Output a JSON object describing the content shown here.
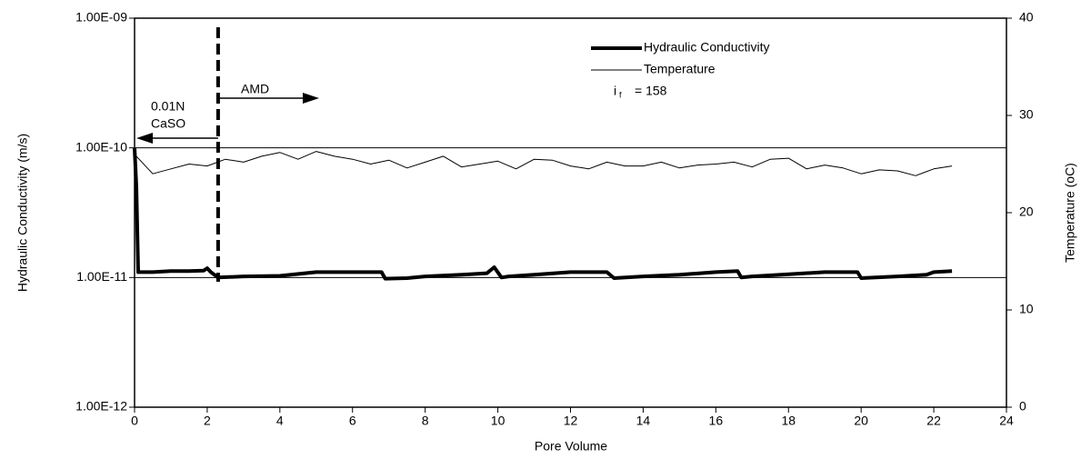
{
  "chart_data": {
    "type": "line",
    "x_label": "Pore Volume",
    "y_label": "Hydraulic Conductivity (m/s)",
    "y2_label": "Temperature (oC)",
    "xlim": [
      0,
      24
    ],
    "xticks": [
      0,
      2,
      4,
      6,
      8,
      10,
      12,
      14,
      16,
      18,
      20,
      22,
      24
    ],
    "ylim": [
      1e-12,
      1e-09
    ],
    "y_scale": "log",
    "yticks": [
      {
        "value": 1e-12,
        "label": "1.00E-12"
      },
      {
        "value": 1e-11,
        "label": "1.00E-11"
      },
      {
        "value": 1e-10,
        "label": "1.00E-10"
      },
      {
        "value": 1e-09,
        "label": "1.00E-09"
      }
    ],
    "y2lim": [
      0,
      40
    ],
    "y2ticks": [
      0,
      10,
      20,
      30,
      40
    ],
    "grid": true,
    "legend": "top-right",
    "annotations": {
      "left_phase": [
        "0.01N",
        "CaSO"
      ],
      "right_phase": "AMD",
      "gradient_symbol": "i",
      "gradient_subscript": "f",
      "gradient_value": "= 158",
      "divider_x": 2.3
    },
    "series": [
      {
        "name": "Hydraulic Conductivity",
        "color": "#000000",
        "width": 4,
        "x": [
          0,
          0.05,
          0.1,
          0.15,
          0.5,
          1,
          1.5,
          1.9,
          2.0,
          2.1,
          2.3,
          3,
          4,
          5,
          6,
          6.8,
          6.9,
          7.5,
          8,
          9,
          9.7,
          9.9,
          10.1,
          10.3,
          11,
          12,
          13,
          13.2,
          14,
          15,
          16,
          16.6,
          16.7,
          17,
          18,
          19,
          19.9,
          20,
          21,
          21.8,
          22,
          22.5
        ],
        "values": [
          1e-10,
          5e-11,
          1.1e-11,
          1.1e-11,
          1.1e-11,
          1.12e-11,
          1.12e-11,
          1.13e-11,
          1.18e-11,
          1.1e-11,
          1e-11,
          1.02e-11,
          1.03e-11,
          1.1e-11,
          1.1e-11,
          1.1e-11,
          9.8e-12,
          9.9e-12,
          1.02e-11,
          1.05e-11,
          1.08e-11,
          1.2e-11,
          1e-11,
          1.02e-11,
          1.05e-11,
          1.1e-11,
          1.1e-11,
          9.9e-12,
          1.02e-11,
          1.05e-11,
          1.1e-11,
          1.12e-11,
          1e-11,
          1.02e-11,
          1.06e-11,
          1.1e-11,
          1.1e-11,
          9.9e-12,
          1.02e-11,
          1.05e-11,
          1.1e-11,
          1.12e-11
        ]
      },
      {
        "name": "Temperature",
        "color": "#000000",
        "width": 1,
        "axis": "y2",
        "x": [
          0,
          0.5,
          1,
          1.5,
          2,
          2.5,
          3,
          3.5,
          4,
          4.5,
          5,
          5.5,
          6,
          6.5,
          7,
          7.5,
          8,
          8.5,
          9,
          9.5,
          10,
          10.5,
          11,
          11.5,
          12,
          12.5,
          13,
          13.5,
          14,
          14.5,
          15,
          15.5,
          16,
          16.5,
          17,
          17.5,
          18,
          18.5,
          19,
          19.5,
          20,
          20.5,
          21,
          21.5,
          22,
          22.5
        ],
        "values": [
          26,
          24,
          24.5,
          25,
          24.8,
          25.5,
          25.2,
          25.8,
          26.2,
          25.5,
          26.3,
          25.8,
          25.5,
          25,
          25.4,
          24.6,
          25.2,
          25.8,
          24.7,
          25,
          25.3,
          24.5,
          25.5,
          25.4,
          24.8,
          24.5,
          25.2,
          24.8,
          24.8,
          25.2,
          24.6,
          24.9,
          25,
          25.2,
          24.7,
          25.5,
          25.6,
          24.5,
          24.9,
          24.6,
          24,
          24.4,
          24.3,
          23.8,
          24.5,
          24.8
        ]
      }
    ]
  }
}
